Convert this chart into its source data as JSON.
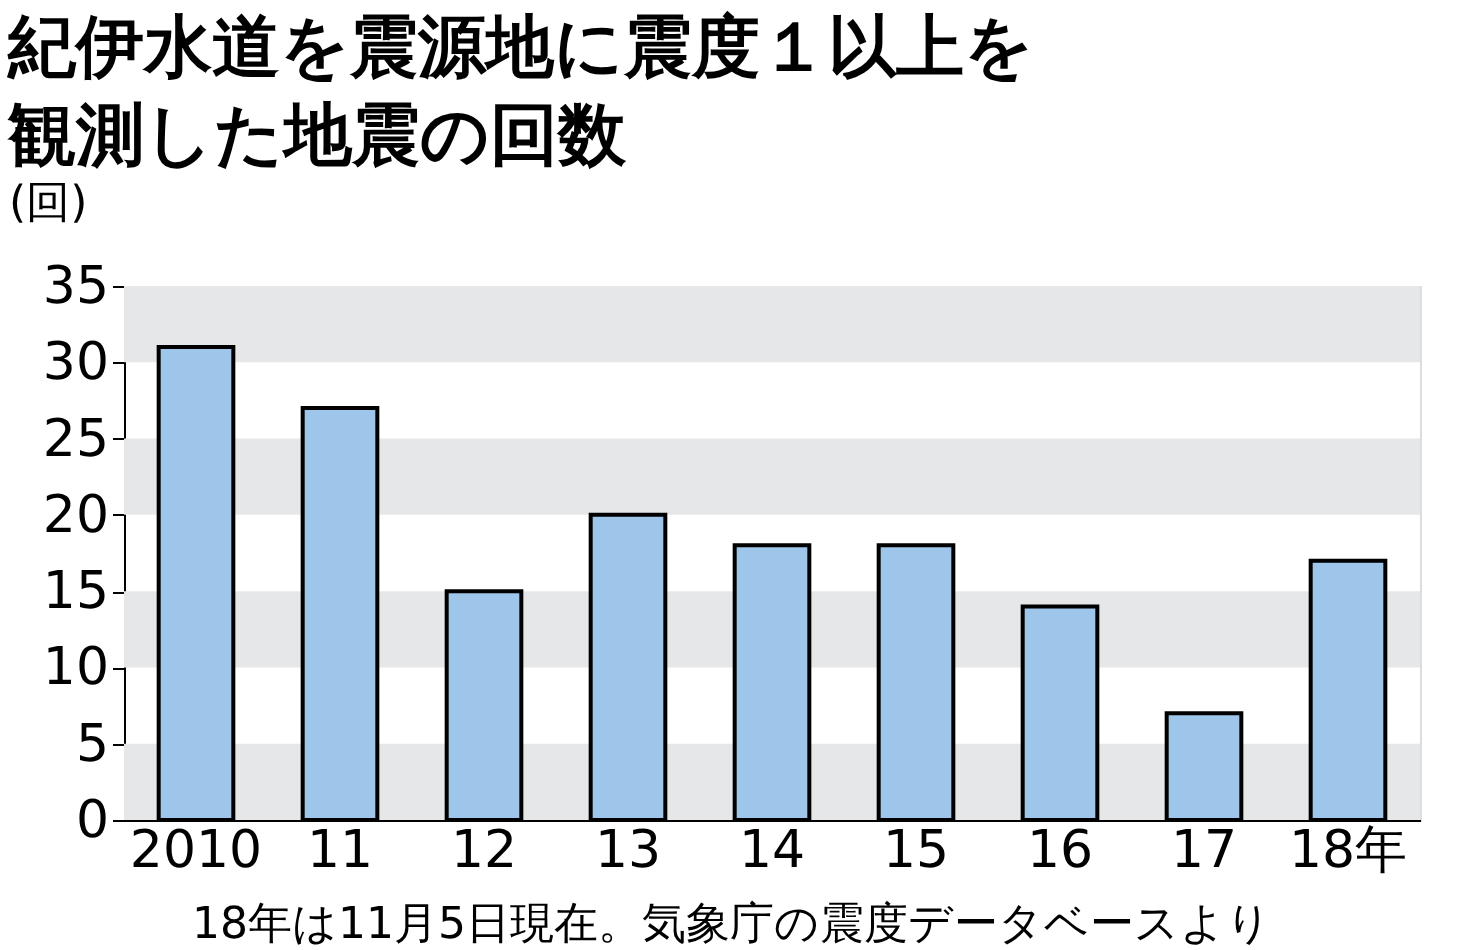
{
  "chart_data": {
    "type": "bar",
    "title": "紀伊水道を震源地に震度１以上を観測した地震の回数",
    "ylabel": "(回)",
    "categories": [
      "2010",
      "11",
      "12",
      "13",
      "14",
      "15",
      "16",
      "17",
      "18年"
    ],
    "values": [
      31,
      27,
      15,
      20,
      18,
      18,
      14,
      7,
      17
    ],
    "color": "#9ec5ea",
    "ylim": [
      0,
      35
    ],
    "yticks": [
      0,
      5,
      10,
      15,
      20,
      25,
      30,
      35
    ],
    "grid": false,
    "bands": [
      {
        "axis": "y",
        "from": 0,
        "to": 5,
        "label": null,
        "color": "#e6e7e8"
      },
      {
        "axis": "y",
        "from": 10,
        "to": 15,
        "label": null,
        "color": "#e6e7e8"
      },
      {
        "axis": "y",
        "from": 20,
        "to": 25,
        "label": null,
        "color": "#e6e7e8"
      },
      {
        "axis": "y",
        "from": 30,
        "to": 35,
        "label": null,
        "color": "#e6e7e8"
      }
    ],
    "annotations": [
      "18年は11月5日現在。気象庁の震度データベースより"
    ]
  }
}
